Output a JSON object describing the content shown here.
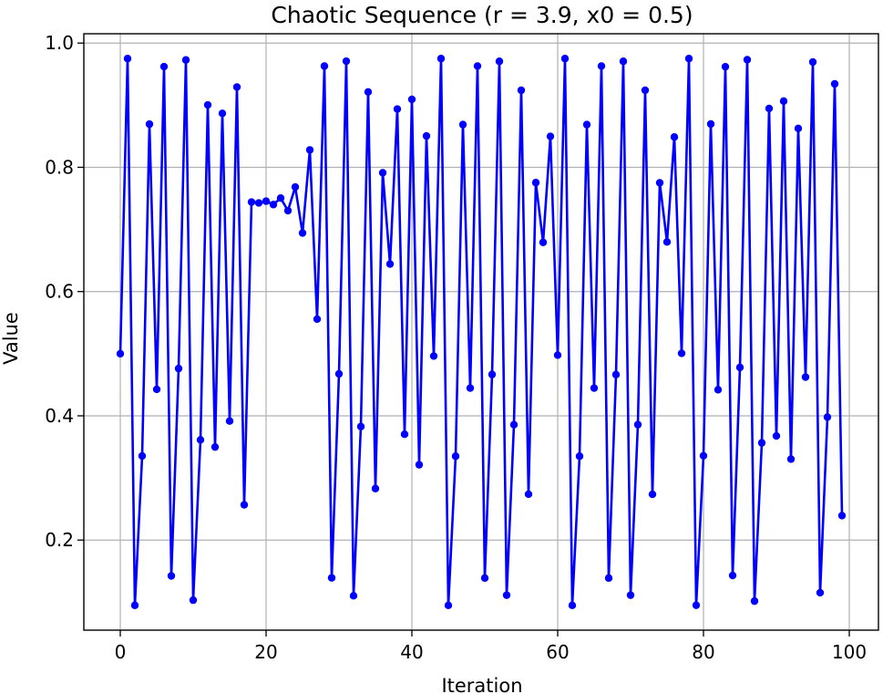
{
  "chart_data": {
    "type": "line",
    "title": "Chaotic Sequence (r = 3.9, x0 = 0.5)",
    "xlabel": "Iteration",
    "ylabel": "Value",
    "xlim": [
      -5,
      104
    ],
    "ylim": [
      0.055,
      1.015
    ],
    "xticks": [
      0,
      20,
      40,
      60,
      80,
      100
    ],
    "xtick_labels": [
      "0",
      "20",
      "40",
      "60",
      "80",
      "100"
    ],
    "yticks": [
      0.2,
      0.4,
      0.6,
      0.8,
      1.0
    ],
    "ytick_labels": [
      "0.2",
      "0.4",
      "0.6",
      "0.8",
      "1.0"
    ],
    "grid": true,
    "marker": "circle",
    "colors": {
      "line": "#0000ff",
      "grid": "#b0b0b0",
      "axes": "#000000"
    },
    "series": [
      {
        "x": [
          0,
          1,
          2,
          3,
          4,
          5,
          6,
          7,
          8,
          9,
          10,
          11,
          12,
          13,
          14,
          15,
          16,
          17,
          18,
          19,
          20,
          21,
          22,
          23,
          24,
          25,
          26,
          27,
          28,
          29,
          30,
          31,
          32,
          33,
          34,
          35,
          36,
          37,
          38,
          39,
          40,
          41,
          42,
          43,
          44,
          45,
          46,
          47,
          48,
          49,
          50,
          51,
          52,
          53,
          54,
          55,
          56,
          57,
          58,
          59,
          60,
          61,
          62,
          63,
          64,
          65,
          66,
          67,
          68,
          69,
          70,
          71,
          72,
          73,
          74,
          75,
          76,
          77,
          78,
          79,
          80,
          81,
          82,
          83,
          84,
          85,
          86,
          87,
          88,
          89,
          90,
          91,
          92,
          93,
          94,
          95,
          96,
          97,
          98,
          99
        ],
        "values": [
          0.5,
          0.975,
          0.095,
          0.3354,
          0.8695,
          0.4426,
          0.9621,
          0.1423,
          0.4761,
          0.9728,
          0.1033,
          0.3613,
          0.9004,
          0.3498,
          0.8868,
          0.3916,
          0.9292,
          0.2567,
          0.7441,
          0.7426,
          0.7455,
          0.74,
          0.7505,
          0.7302,
          0.7683,
          0.6942,
          0.828,
          0.5556,
          0.9629,
          0.1392,
          0.4675,
          0.9709,
          0.1103,
          0.3827,
          0.9213,
          0.2829,
          0.7912,
          0.6443,
          0.8938,
          0.3703,
          0.9094,
          0.3212,
          0.8504,
          0.4962,
          0.975,
          0.0949,
          0.335,
          0.8688,
          0.4446,
          0.963,
          0.1389,
          0.4666,
          0.9706,
          0.1113,
          0.3857,
          0.924,
          0.2738,
          0.7754,
          0.6792,
          0.8498,
          0.4977,
          0.975,
          0.0949,
          0.335,
          0.8688,
          0.4446,
          0.963,
          0.1389,
          0.4664,
          0.9706,
          0.1113,
          0.3858,
          0.9241,
          0.2736,
          0.7751,
          0.6799,
          0.8488,
          0.5006,
          0.975,
          0.0951,
          0.3357,
          0.8697,
          0.442,
          0.9619,
          0.143,
          0.4779,
          0.9732,
          0.1018,
          0.3565,
          0.8947,
          0.3676,
          0.9066,
          0.3303,
          0.8626,
          0.4623,
          0.9695,
          0.1153,
          0.3979,
          0.9343,
          0.2393
        ]
      }
    ]
  }
}
